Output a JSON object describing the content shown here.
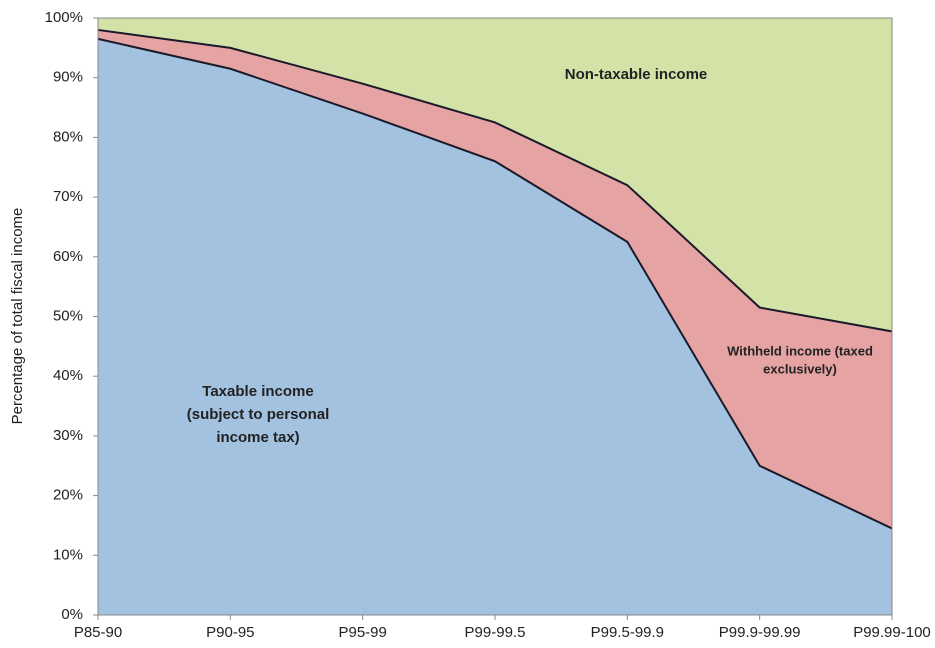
{
  "chart_data": {
    "type": "stacked-area",
    "y_label": "Percentage of total fiscal income",
    "categories": [
      "P85-90",
      "P90-95",
      "P95-99",
      "P99-99.5",
      "P99.5-99.9",
      "P99.9-99.99",
      "P99.99-100"
    ],
    "series": [
      {
        "label": [
          "Taxable income",
          "(subject to personal",
          "income tax)"
        ],
        "color": "#a3c2e0",
        "values": [
          96.5,
          91.5,
          84,
          76,
          62.5,
          25,
          14.5
        ]
      },
      {
        "label": [
          "Withheld income (taxed",
          "exclusively)"
        ],
        "color": "#e6a3a3",
        "values": [
          1.5,
          3.5,
          5,
          6.5,
          9.5,
          26.5,
          33
        ]
      },
      {
        "label": [
          "Non-taxable income"
        ],
        "color": "#d3e3a8",
        "values": [
          2,
          5,
          11,
          17.5,
          28,
          48.5,
          52.5
        ]
      }
    ],
    "ylim": [
      0,
      100
    ],
    "yticks": [
      {
        "value": 0,
        "label": "0%"
      },
      {
        "value": 10,
        "label": "10%"
      },
      {
        "value": 20,
        "label": "20%"
      },
      {
        "value": 30,
        "label": "30%"
      },
      {
        "value": 40,
        "label": "40%"
      },
      {
        "value": 50,
        "label": "50%"
      },
      {
        "value": 60,
        "label": "60%"
      },
      {
        "value": 70,
        "label": "70%"
      },
      {
        "value": 80,
        "label": "80%"
      },
      {
        "value": 90,
        "label": "90%"
      },
      {
        "value": 100,
        "label": "100%"
      }
    ]
  }
}
